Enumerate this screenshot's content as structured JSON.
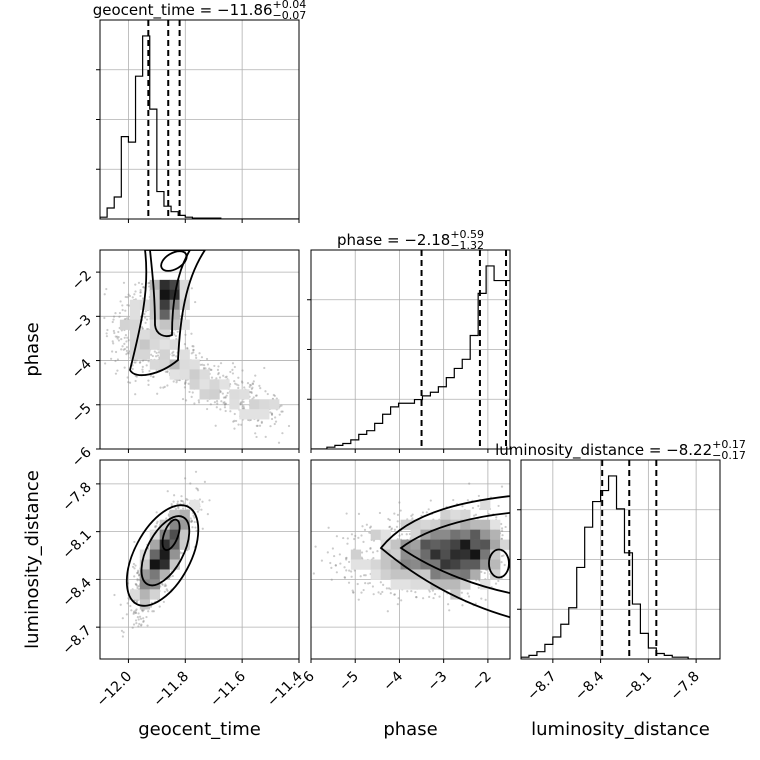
{
  "chart_data": {
    "type": "corner",
    "parameters": [
      "geocent_time",
      "phase",
      "luminosity_distance"
    ],
    "ranges": {
      "geocent_time": [
        -12.1,
        -11.4
      ],
      "phase": [
        -6.0,
        -1.5
      ],
      "luminosity_distance": [
        -8.9,
        -7.65
      ]
    },
    "ticks": {
      "geocent_time": {
        "values": [
          -12.0,
          -11.8,
          -11.6,
          -11.4
        ],
        "labels": [
          "−12.0",
          "−11.8",
          "−11.6",
          "−11.4"
        ]
      },
      "phase": {
        "values": [
          -6,
          -5,
          -4,
          -3,
          -2
        ],
        "labels": [
          "−6",
          "−5",
          "−4",
          "−3",
          "−2"
        ]
      },
      "luminosity_distance": {
        "values": [
          -8.7,
          -8.4,
          -8.1,
          -7.8
        ],
        "labels": [
          "−8.7",
          "−8.4",
          "−8.1",
          "−7.8"
        ]
      }
    },
    "titles": [
      {
        "param": "geocent_time",
        "base": "geocent_time = −11.86",
        "plus": "+0.04",
        "minus": "−0.07"
      },
      {
        "param": "phase",
        "base": "phase = −2.18",
        "plus": "+0.59",
        "minus": "−1.32"
      },
      {
        "param": "luminosity_distance",
        "base": "luminosity_distance = −8.22",
        "plus": "+0.17",
        "minus": "−0.17"
      }
    ],
    "histograms": {
      "geocent_time": {
        "edges_start": -12.1,
        "bin_width": 0.025,
        "ymax": 1.0,
        "counts": [
          0.01,
          0.06,
          0.12,
          0.45,
          0.42,
          0.78,
          1.0,
          0.6,
          0.15,
          0.07,
          0.04,
          0.02,
          0.01,
          0.005,
          0.005,
          0.005,
          0.005,
          0.0,
          0.0,
          0.0,
          0.0,
          0.0,
          0.0,
          0.0,
          0.0,
          0.0,
          0.0,
          0.0
        ],
        "quantiles": [
          -11.93,
          -11.86,
          -11.82
        ]
      },
      "phase": {
        "edges_start": -6.0,
        "bin_width": 0.18,
        "ymax": 1.0,
        "counts": [
          0.0,
          0.0,
          0.01,
          0.02,
          0.03,
          0.05,
          0.08,
          0.1,
          0.14,
          0.19,
          0.23,
          0.25,
          0.25,
          0.27,
          0.29,
          0.31,
          0.34,
          0.39,
          0.44,
          0.49,
          0.62,
          0.85,
          1.0,
          0.92,
          0.92
        ],
        "quantiles": [
          -3.5,
          -2.18,
          -1.59
        ]
      },
      "luminosity_distance": {
        "edges_start": -8.9,
        "bin_width": 0.05,
        "ymax": 1.0,
        "counts": [
          0.01,
          0.02,
          0.04,
          0.08,
          0.12,
          0.19,
          0.28,
          0.5,
          0.72,
          0.86,
          0.92,
          1.0,
          0.82,
          0.58,
          0.3,
          0.14,
          0.06,
          0.03,
          0.02,
          0.01,
          0.01,
          0.0,
          0.0,
          0.0,
          0.0
        ],
        "quantiles": [
          -8.39,
          -8.22,
          -8.05
        ]
      }
    },
    "colors": {
      "line": "#000000",
      "grid": "#b0b0b0",
      "scatter": "#8c8c8c",
      "density": "#000000"
    }
  }
}
